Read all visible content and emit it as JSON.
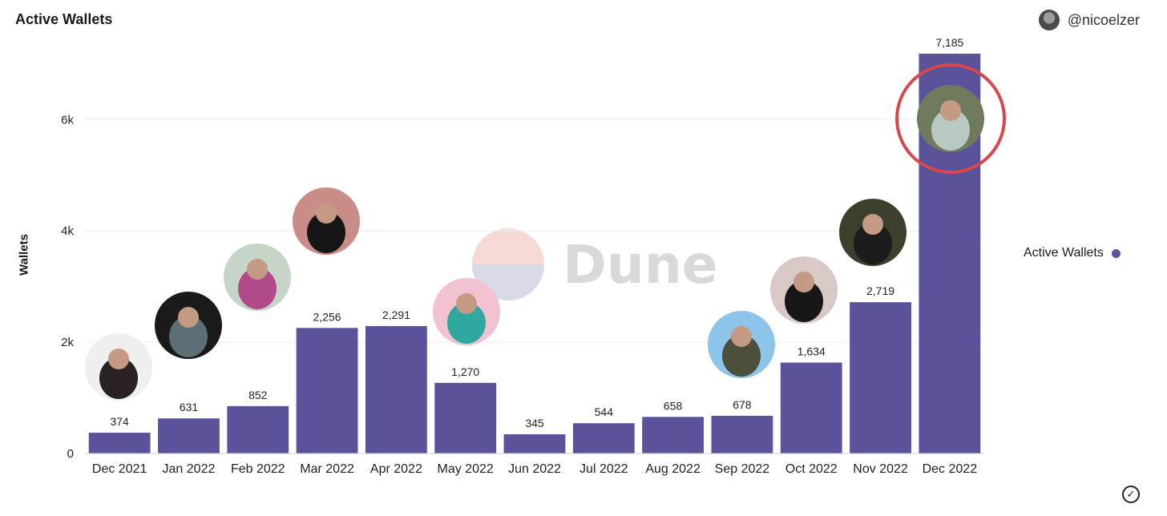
{
  "header": {
    "title": "Active Wallets",
    "username": "@nicoelzer"
  },
  "watermark": {
    "text": "Dune"
  },
  "colors": {
    "bar": "#5a539b",
    "highlight_ring": "#d8474b",
    "grid": "#ececec"
  },
  "chart_data": {
    "type": "bar",
    "title": "Active Wallets",
    "xlabel": "",
    "ylabel": "Wallets",
    "categories": [
      "Dec 2021",
      "Jan 2022",
      "Feb 2022",
      "Mar 2022",
      "Apr 2022",
      "May 2022",
      "Jun 2022",
      "Jul 2022",
      "Aug 2022",
      "Sep 2022",
      "Oct 2022",
      "Nov 2022",
      "Dec 2022"
    ],
    "series": [
      {
        "name": "Active Wallets",
        "values": [
          374,
          631,
          852,
          2256,
          2291,
          1270,
          345,
          544,
          658,
          678,
          1634,
          2719,
          7185
        ]
      }
    ],
    "data_labels": [
      "374",
      "631",
      "852",
      "2,256",
      "2,291",
      "1,270",
      "345",
      "544",
      "658",
      "678",
      "1,634",
      "2,719",
      "7,185"
    ],
    "yticks": [
      0,
      2000,
      4000,
      6000
    ],
    "ytick_labels": [
      "0",
      "2k",
      "4k",
      "6k"
    ],
    "ylim": [
      0,
      7185
    ],
    "grid": true,
    "legend_position": "right",
    "highlighted_category": "Dec 2022"
  }
}
